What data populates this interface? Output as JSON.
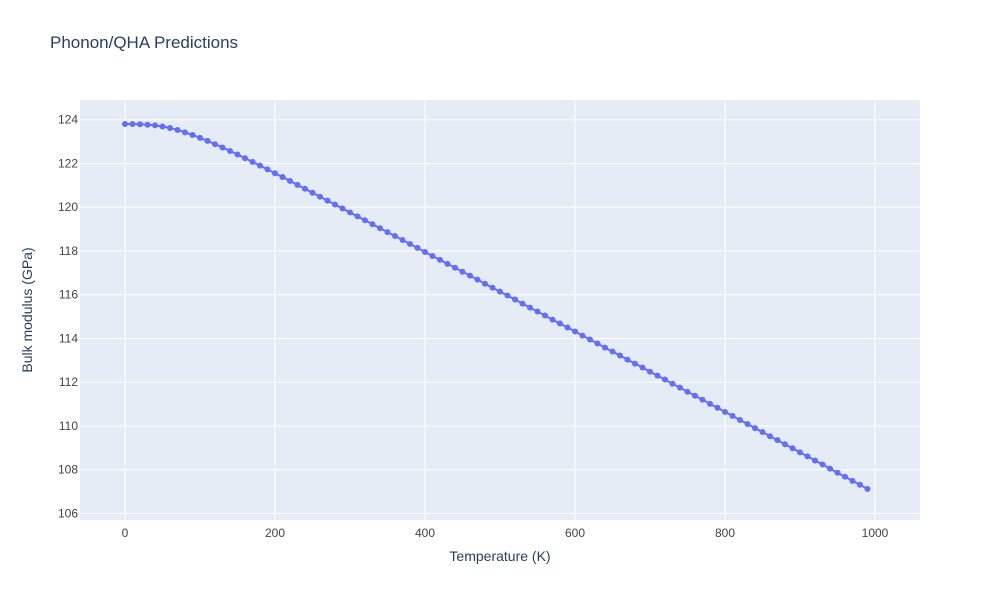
{
  "colors": {
    "plot_background": "#e5ecf6",
    "grid": "#ffffff",
    "marker": "#636efa",
    "text": "#2a3f5f",
    "tick_text": "#444444"
  },
  "chart_data": {
    "type": "line",
    "title": "Phonon/QHA Predictions",
    "xlabel": "Temperature (K)",
    "ylabel": "Bulk modulus (GPa)",
    "xlim": [
      -60,
      1060
    ],
    "ylim": [
      105.7,
      124.9
    ],
    "x_ticks": [
      0,
      200,
      400,
      600,
      800,
      1000
    ],
    "y_ticks": [
      106,
      108,
      110,
      112,
      114,
      116,
      118,
      120,
      122,
      124
    ],
    "grid": true,
    "mode": "lines+markers",
    "series": [
      {
        "x": [
          0,
          10,
          20,
          30,
          40,
          50,
          60,
          70,
          80,
          90,
          100,
          110,
          120,
          130,
          140,
          150,
          160,
          170,
          180,
          190,
          200,
          210,
          220,
          230,
          240,
          250,
          260,
          270,
          280,
          290,
          300,
          310,
          320,
          330,
          340,
          350,
          360,
          370,
          380,
          390,
          400,
          410,
          420,
          430,
          440,
          450,
          460,
          470,
          480,
          490,
          500,
          510,
          520,
          530,
          540,
          550,
          560,
          570,
          580,
          590,
          600,
          610,
          620,
          630,
          640,
          650,
          660,
          670,
          680,
          690,
          700,
          710,
          720,
          730,
          740,
          750,
          760,
          770,
          780,
          790,
          800,
          810,
          820,
          830,
          840,
          850,
          860,
          870,
          880,
          890,
          900,
          910,
          920,
          930,
          940,
          950,
          960,
          970,
          980,
          990
        ],
        "y": [
          123.8,
          123.8,
          123.79,
          123.77,
          123.74,
          123.69,
          123.62,
          123.53,
          123.42,
          123.3,
          123.17,
          123.03,
          122.88,
          122.73,
          122.57,
          122.41,
          122.24,
          122.07,
          121.9,
          121.73,
          121.55,
          121.38,
          121.2,
          121.02,
          120.84,
          120.66,
          120.48,
          120.3,
          120.12,
          119.94,
          119.76,
          119.58,
          119.4,
          119.22,
          119.04,
          118.86,
          118.68,
          118.5,
          118.32,
          118.14,
          117.95,
          117.77,
          117.59,
          117.41,
          117.23,
          117.05,
          116.87,
          116.69,
          116.5,
          116.32,
          116.14,
          115.96,
          115.78,
          115.59,
          115.41,
          115.23,
          115.05,
          114.86,
          114.68,
          114.5,
          114.32,
          114.13,
          113.95,
          113.77,
          113.58,
          113.4,
          113.22,
          113.03,
          112.85,
          112.67,
          112.48,
          112.3,
          112.12,
          111.93,
          111.75,
          111.56,
          111.38,
          111.2,
          111.01,
          110.83,
          110.64,
          110.46,
          110.27,
          110.09,
          109.9,
          109.72,
          109.53,
          109.35,
          109.16,
          108.98,
          108.79,
          108.61,
          108.42,
          108.24,
          108.05,
          107.86,
          107.68,
          107.49,
          107.31,
          107.12
        ]
      }
    ]
  }
}
